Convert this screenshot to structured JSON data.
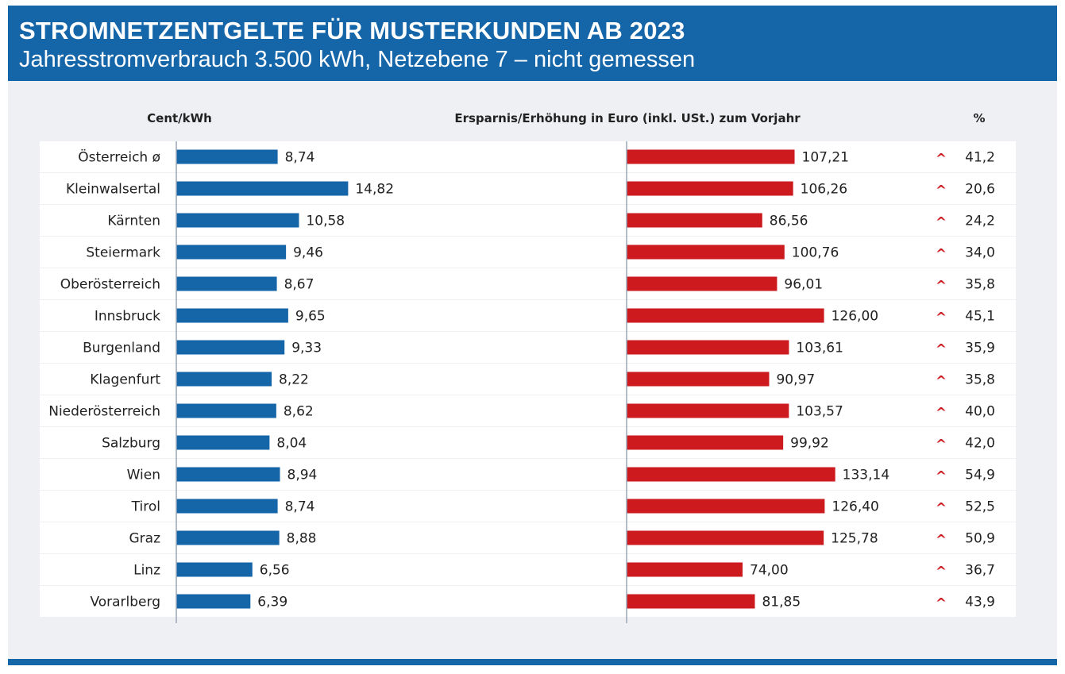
{
  "header": {
    "title": "STROMNETZENTGELTE FÜR MUSTERKUNDEN AB 2023",
    "subtitle": "Jahresstromverbrauch 3.500 kWh, Netzebene 7 – nicht gemessen"
  },
  "colors": {
    "header_bg": "#1565a9",
    "bar_blue": "#1565a9",
    "bar_red": "#cc1a1f",
    "panel_bg": "#eef0f3"
  },
  "chart_data": {
    "type": "bar",
    "orientation": "horizontal",
    "categories": [
      "Österreich ø",
      "Kleinwalsertal",
      "Kärnten",
      "Steiermark",
      "Oberösterreich",
      "Innsbruck",
      "Burgenland",
      "Klagenfurt",
      "Niederösterreich",
      "Salzburg",
      "Wien",
      "Tirol",
      "Graz",
      "Linz",
      "Vorarlberg"
    ],
    "series": [
      {
        "name": "Cent/kWh",
        "values": [
          8.74,
          14.82,
          10.58,
          9.46,
          8.67,
          9.65,
          9.33,
          8.22,
          8.62,
          8.04,
          8.94,
          8.74,
          8.88,
          6.56,
          6.39
        ],
        "labels": [
          "8,74",
          "14,82",
          "10,58",
          "9,46",
          "8,67",
          "9,65",
          "9,33",
          "8,22",
          "8,62",
          "8,04",
          "8,94",
          "8,74",
          "8,88",
          "6,56",
          "6,39"
        ]
      },
      {
        "name": "Ersparnis/Erhöhung in Euro (inkl. USt.) zum Vorjahr",
        "values": [
          107.21,
          106.26,
          86.56,
          100.76,
          96.01,
          126.0,
          103.61,
          90.97,
          103.57,
          99.92,
          133.14,
          126.4,
          125.78,
          74.0,
          81.85
        ],
        "labels": [
          "107,21",
          "106,26",
          "86,56",
          "100,76",
          "96,01",
          "126,00",
          "103,61",
          "90,97",
          "103,57",
          "99,92",
          "133,14",
          "126,40",
          "125,78",
          "74,00",
          "81,85"
        ]
      },
      {
        "name": "%",
        "values": [
          41.2,
          20.6,
          24.2,
          34.0,
          35.8,
          45.1,
          35.9,
          35.8,
          40.0,
          42.0,
          54.9,
          52.5,
          50.9,
          36.7,
          43.9
        ],
        "labels": [
          "41,2",
          "20,6",
          "24,2",
          "34,0",
          "35,8",
          "45,1",
          "35,9",
          "35,8",
          "40,0",
          "42,0",
          "54,9",
          "52,5",
          "50,9",
          "36,7",
          "43,9"
        ]
      }
    ],
    "change_symbol": "^",
    "legend": "none",
    "grid": false
  }
}
